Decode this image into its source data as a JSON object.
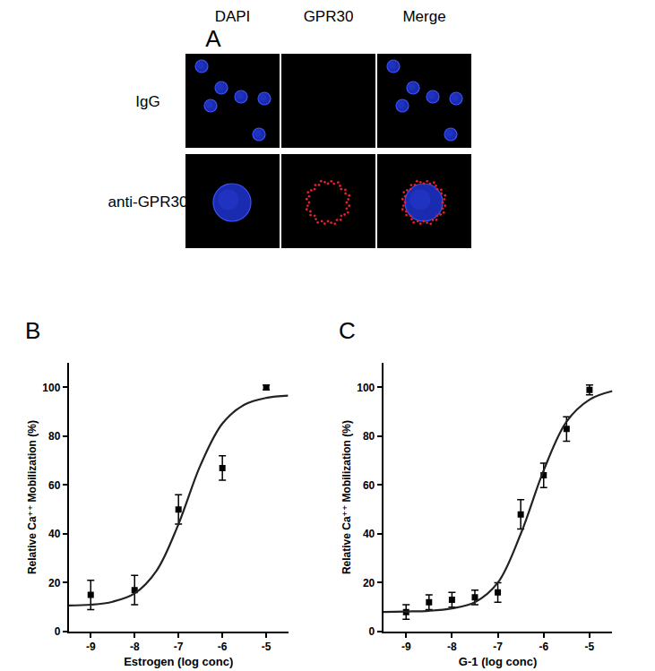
{
  "figure_panels": {
    "A": {
      "label": "A",
      "columns": [
        "DAPI",
        "GPR30",
        "Merge"
      ],
      "rows": [
        "IgG",
        "anti-GPR30"
      ]
    }
  },
  "chart_data": [
    {
      "label": "B",
      "type": "scatter",
      "xlabel": "Estrogen (log conc)",
      "ylabel": "Relative Ca⁺⁺ Mobilization (%)",
      "xlim": [
        -9.5,
        -4.5
      ],
      "xticks": [
        -9,
        -8,
        -7,
        -6,
        -5
      ],
      "ylim": [
        0,
        110
      ],
      "yticks": [
        0,
        20,
        40,
        60,
        80,
        100
      ],
      "grid": false,
      "series": [
        {
          "type": "scatter",
          "marker": "square",
          "color": "#000000",
          "x": [
            -9,
            -8,
            -7,
            -6,
            -5
          ],
          "values": [
            15,
            17,
            50,
            67,
            100
          ],
          "error": [
            6,
            6,
            6,
            5,
            1
          ]
        },
        {
          "type": "line",
          "line_style": "solid",
          "color": "#222222",
          "x": [
            -9.5,
            -9,
            -8.5,
            -8,
            -7.5,
            -7,
            -6.5,
            -6,
            -5.5,
            -5,
            -4.5
          ],
          "values": [
            10.7,
            11.0,
            12.2,
            15.6,
            24.9,
            44.0,
            68.1,
            85.2,
            92.9,
            95.7,
            96.6
          ]
        }
      ]
    },
    {
      "label": "C",
      "type": "scatter",
      "xlabel": "G-1 (log conc)",
      "ylabel": "Relative Ca⁺⁺ Mobilization (%)",
      "xlim": [
        -9.5,
        -4.5
      ],
      "xticks": [
        -9,
        -8,
        -7,
        -6,
        -5
      ],
      "ylim": [
        0,
        110
      ],
      "yticks": [
        0,
        20,
        40,
        60,
        80,
        100
      ],
      "grid": false,
      "series": [
        {
          "type": "scatter",
          "marker": "square",
          "color": "#000000",
          "x": [
            -9,
            -8.5,
            -8,
            -7.5,
            -7,
            -6.5,
            -6,
            -5.5,
            -5
          ],
          "values": [
            8,
            12,
            13,
            14,
            16,
            48,
            64,
            83,
            99
          ],
          "error": [
            3,
            3,
            3,
            3,
            4,
            6,
            5,
            5,
            2
          ]
        },
        {
          "type": "line",
          "line_style": "solid",
          "color": "#222222",
          "x": [
            -9.5,
            -9,
            -8.5,
            -8,
            -7.5,
            -7,
            -6.5,
            -6,
            -5.5,
            -5,
            -4.5
          ],
          "values": [
            8.0,
            8.2,
            8.5,
            9.5,
            12.0,
            20.0,
            40.0,
            66.0,
            86.0,
            95.0,
            98.5
          ]
        }
      ]
    }
  ]
}
